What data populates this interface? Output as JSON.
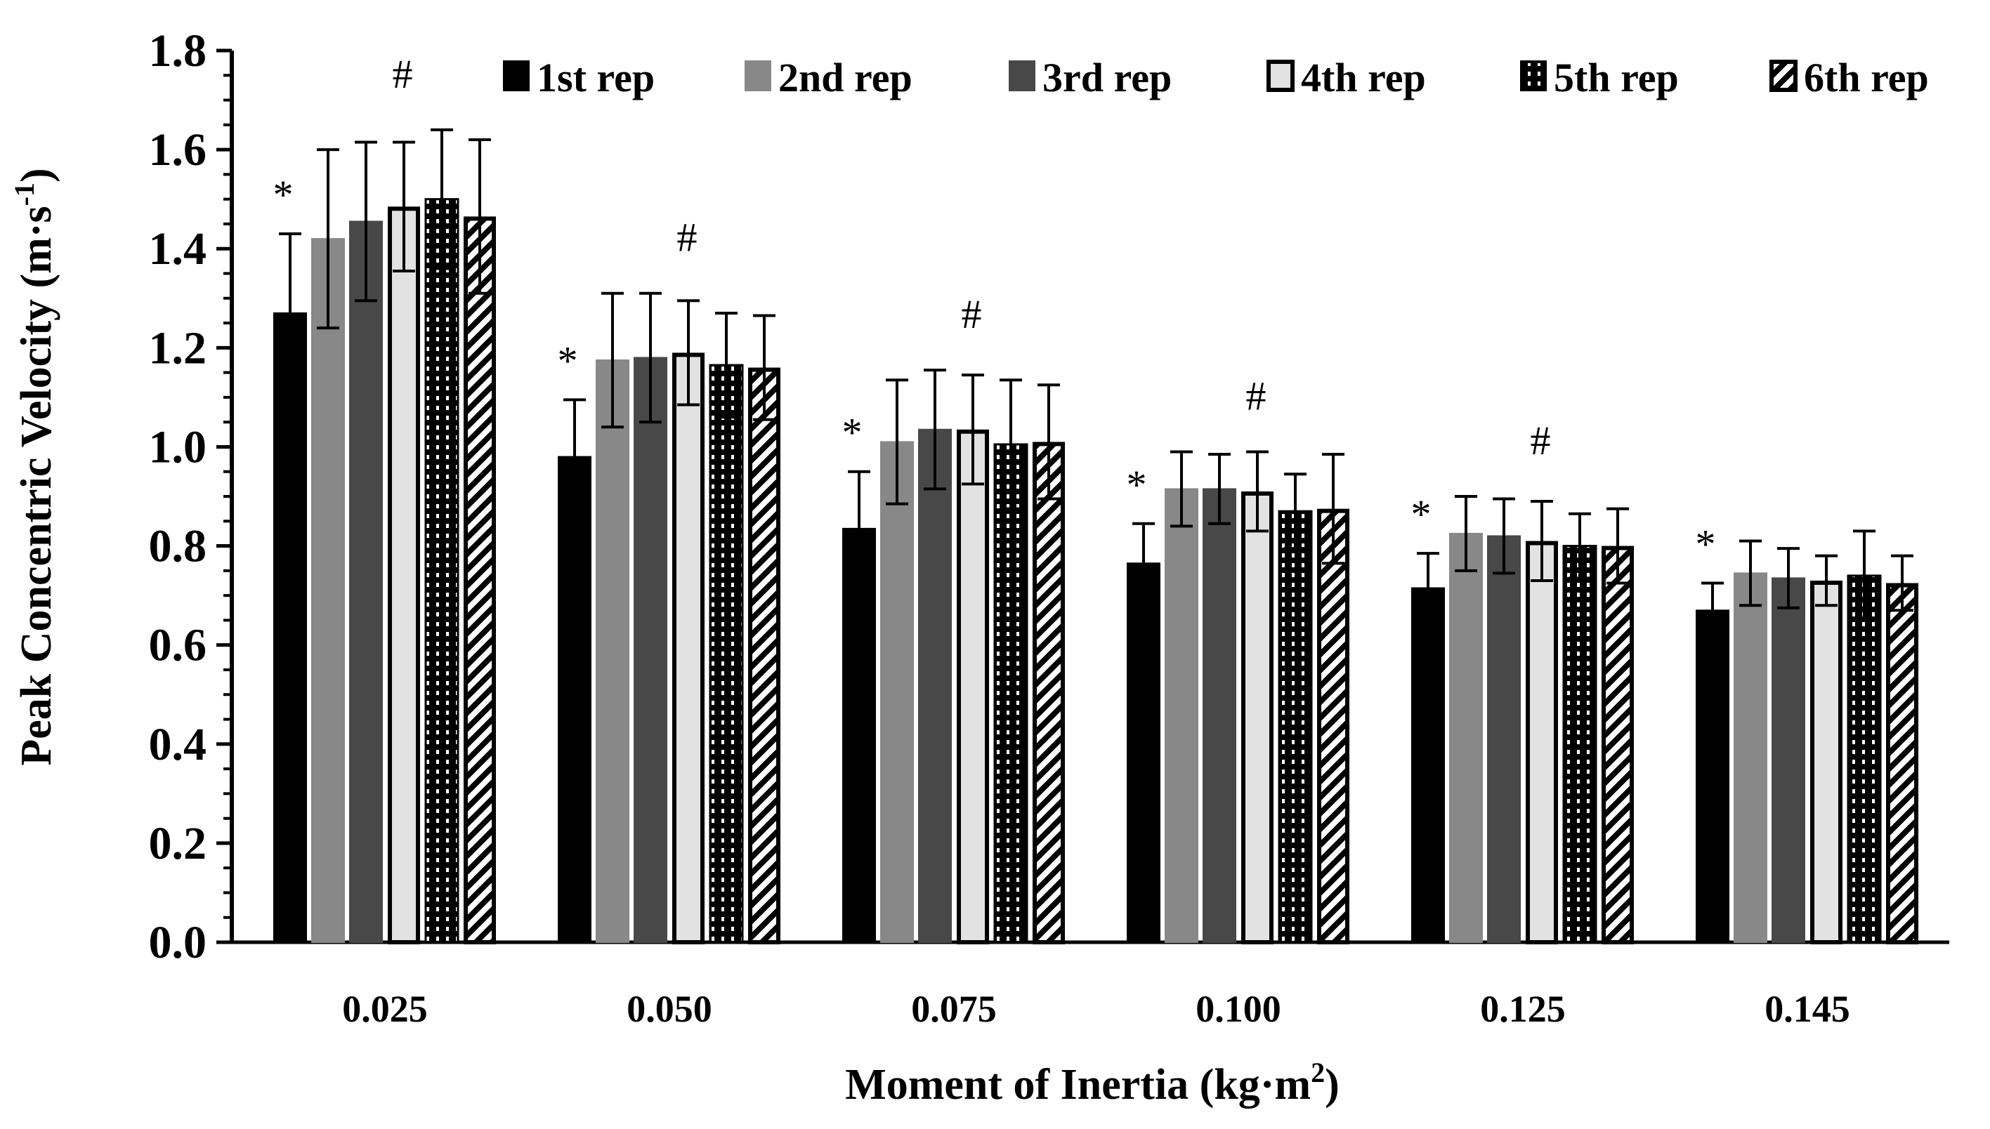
{
  "chart_data": {
    "type": "bar",
    "xlabel": "Moment of Inertia  (kg·m",
    "xlabel_sup": "2",
    "xlabel_end": ")",
    "ylabel": "Peak Concentric  Velocity (m·s",
    "ylabel_sup": "-1",
    "ylabel_end": ")",
    "ylim": [
      0,
      1.8
    ],
    "y_ticks": [
      "0.0",
      "0.2",
      "0.4",
      "0.6",
      "0.8",
      "1.0",
      "1.2",
      "1.4",
      "1.6",
      "1.8"
    ],
    "categories": [
      "0.025",
      "0.050",
      "0.075",
      "0.100",
      "0.125",
      "0.145"
    ],
    "legend_position": "top-right",
    "grid": false,
    "series": [
      {
        "name": "1st rep",
        "pattern": "solid-black",
        "values": [
          1.27,
          0.98,
          0.835,
          0.765,
          0.715,
          0.67
        ],
        "errors": [
          0.16,
          0.115,
          0.115,
          0.08,
          0.07,
          0.055
        ]
      },
      {
        "name": "2nd rep",
        "pattern": "solid-gray",
        "values": [
          1.42,
          1.175,
          1.01,
          0.915,
          0.825,
          0.745
        ],
        "errors": [
          0.18,
          0.135,
          0.125,
          0.075,
          0.075,
          0.065
        ]
      },
      {
        "name": "3rd rep",
        "pattern": "solid-dark-gray",
        "values": [
          1.455,
          1.18,
          1.035,
          0.915,
          0.82,
          0.735
        ],
        "errors": [
          0.16,
          0.13,
          0.12,
          0.07,
          0.075,
          0.06
        ]
      },
      {
        "name": "4th rep",
        "pattern": "light-gray-outlined",
        "values": [
          1.485,
          1.19,
          1.035,
          0.91,
          0.81,
          0.73
        ],
        "errors": [
          0.13,
          0.105,
          0.11,
          0.08,
          0.08,
          0.05
        ]
      },
      {
        "name": "5th rep",
        "pattern": "black-dotted",
        "values": [
          1.5,
          1.165,
          1.005,
          0.87,
          0.8,
          0.74
        ],
        "errors": [
          0.14,
          0.105,
          0.13,
          0.075,
          0.065,
          0.09
        ]
      },
      {
        "name": "6th rep",
        "pattern": "diagonal-hatch",
        "values": [
          1.465,
          1.16,
          1.01,
          0.875,
          0.8,
          0.725
        ],
        "errors": [
          0.155,
          0.105,
          0.115,
          0.11,
          0.075,
          0.055
        ]
      }
    ],
    "annotations": [
      {
        "category": "0.025",
        "marks": [
          "*",
          "#"
        ]
      },
      {
        "category": "0.050",
        "marks": [
          "*",
          "#"
        ]
      },
      {
        "category": "0.075",
        "marks": [
          "*",
          "#"
        ]
      },
      {
        "category": "0.100",
        "marks": [
          "*",
          "#"
        ]
      },
      {
        "category": "0.125",
        "marks": [
          "*",
          "#"
        ]
      },
      {
        "category": "0.145",
        "marks": [
          "*"
        ]
      }
    ]
  }
}
